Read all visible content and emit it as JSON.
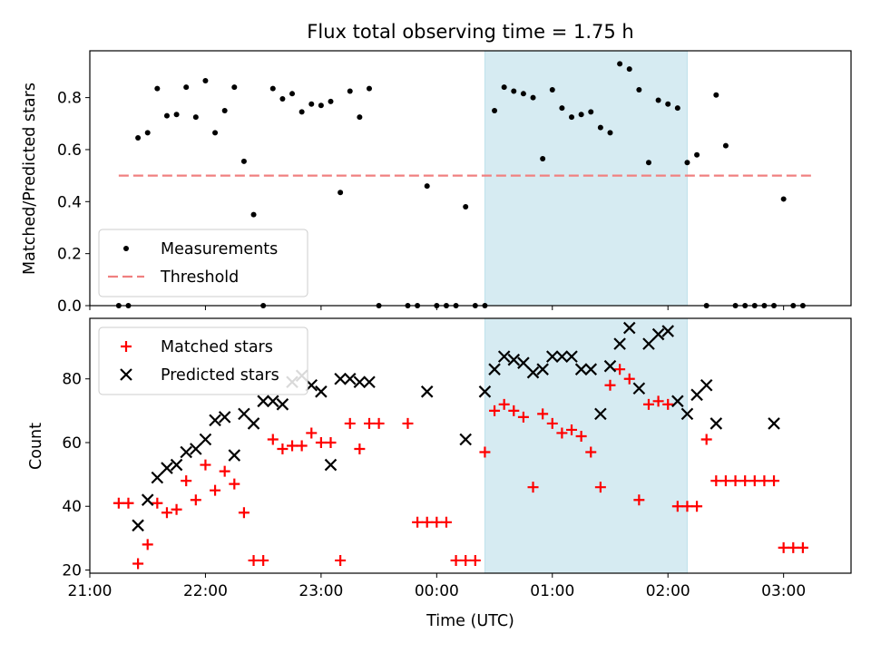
{
  "chart_data": [
    {
      "type": "scatter",
      "title": "Flux total observing time = 1.75 h",
      "ylabel": "Matched/Predicted stars",
      "xlabel": "",
      "ylim": [
        0,
        0.98
      ],
      "yticks": [
        "0.0",
        "0.2",
        "0.4",
        "0.6",
        "0.8"
      ],
      "xlim": [
        "21:00",
        "03:35"
      ],
      "legend_location": "lower-left",
      "highlight_span": {
        "start": "00:25",
        "end": "02:10",
        "color": "#add8e6"
      },
      "series": [
        {
          "name": "Measurements",
          "color": "#000000",
          "marker": "dot",
          "x": [
            "21:15",
            "21:20",
            "21:25",
            "21:30",
            "21:35",
            "21:40",
            "21:45",
            "21:50",
            "21:55",
            "22:00",
            "22:05",
            "22:10",
            "22:15",
            "22:20",
            "22:25",
            "22:30",
            "22:35",
            "22:40",
            "22:45",
            "22:50",
            "22:55",
            "23:00",
            "23:05",
            "23:10",
            "23:15",
            "23:20",
            "23:25",
            "23:30",
            "23:45",
            "23:50",
            "23:55",
            "00:00",
            "00:05",
            "00:10",
            "00:15",
            "00:20",
            "00:25",
            "00:30",
            "00:35",
            "00:40",
            "00:45",
            "00:50",
            "00:55",
            "01:00",
            "01:05",
            "01:10",
            "01:15",
            "01:20",
            "01:25",
            "01:30",
            "01:35",
            "01:40",
            "01:45",
            "01:50",
            "01:55",
            "02:00",
            "02:05",
            "02:10",
            "02:15",
            "02:20",
            "02:25",
            "02:30",
            "02:35",
            "02:40",
            "02:45",
            "02:50",
            "02:55",
            "03:00",
            "03:05",
            "03:10"
          ],
          "y": [
            0.0,
            0.0,
            0.645,
            0.665,
            0.835,
            0.73,
            0.735,
            0.84,
            0.725,
            0.865,
            0.665,
            0.75,
            0.84,
            0.555,
            0.35,
            0.0,
            0.835,
            0.795,
            0.815,
            0.745,
            0.775,
            0.77,
            0.785,
            0.435,
            0.825,
            0.725,
            0.835,
            0.0,
            0.0,
            0.0,
            0.46,
            0.0,
            0.0,
            0.0,
            0.38,
            0.0,
            0.0,
            0.75,
            0.84,
            0.825,
            0.815,
            0.8,
            0.565,
            0.83,
            0.76,
            0.725,
            0.735,
            0.745,
            0.685,
            0.665,
            0.93,
            0.91,
            0.83,
            0.55,
            0.79,
            0.775,
            0.76,
            0.55,
            0.58,
            0.0,
            0.81,
            0.615,
            0.0,
            0.0,
            0.0,
            0.0,
            0.0,
            0.41,
            0.0,
            0.0
          ]
        },
        {
          "name": "Threshold",
          "color": "#f08080",
          "style": "dashed",
          "x": [
            "21:15",
            "03:15"
          ],
          "y": [
            0.5,
            0.5
          ]
        }
      ]
    },
    {
      "type": "scatter",
      "title": "",
      "ylabel": "Count",
      "xlabel": "Time (UTC)",
      "ylim": [
        19,
        99
      ],
      "yticks": [
        "20",
        "40",
        "60",
        "80"
      ],
      "xlim": [
        "21:00",
        "03:35"
      ],
      "xticks": [
        "21:00",
        "22:00",
        "23:00",
        "00:00",
        "01:00",
        "02:00",
        "03:00"
      ],
      "legend_location": "upper-left",
      "highlight_span": {
        "start": "00:25",
        "end": "02:10",
        "color": "#add8e6"
      },
      "series": [
        {
          "name": "Matched stars",
          "color": "#ff0000",
          "marker": "plus",
          "x": [
            "21:15",
            "21:20",
            "21:25",
            "21:30",
            "21:35",
            "21:40",
            "21:45",
            "21:50",
            "21:55",
            "22:00",
            "22:05",
            "22:10",
            "22:15",
            "22:20",
            "22:25",
            "22:30",
            "22:35",
            "22:40",
            "22:45",
            "22:50",
            "22:55",
            "23:00",
            "23:05",
            "23:10",
            "23:15",
            "23:20",
            "23:25",
            "23:30",
            "23:45",
            "23:50",
            "23:55",
            "00:00",
            "00:05",
            "00:10",
            "00:15",
            "00:20",
            "00:25",
            "00:30",
            "00:35",
            "00:40",
            "00:45",
            "00:50",
            "00:55",
            "01:00",
            "01:05",
            "01:10",
            "01:15",
            "01:20",
            "01:25",
            "01:30",
            "01:35",
            "01:40",
            "01:45",
            "01:50",
            "01:55",
            "02:00",
            "02:05",
            "02:10",
            "02:15",
            "02:20",
            "02:25",
            "02:30",
            "02:35",
            "02:40",
            "02:45",
            "02:50",
            "02:55",
            "03:00",
            "03:05",
            "03:10"
          ],
          "y": [
            41,
            41,
            22,
            28,
            41,
            38,
            39,
            48,
            42,
            53,
            45,
            51,
            47,
            38,
            23,
            23,
            61,
            58,
            59,
            59,
            63,
            60,
            60,
            23,
            66,
            58,
            66,
            66,
            66,
            35,
            35,
            35,
            35,
            23,
            23,
            23,
            57,
            70,
            72,
            70,
            68,
            46,
            69,
            66,
            63,
            64,
            62,
            57,
            46,
            78,
            83,
            80,
            42,
            72,
            73,
            72,
            40,
            40,
            40,
            61,
            48,
            48,
            48,
            48,
            48,
            48,
            48,
            27,
            27,
            27
          ]
        },
        {
          "name": "Predicted stars",
          "color": "#000000",
          "marker": "x",
          "x": [
            "21:25",
            "21:30",
            "21:35",
            "21:40",
            "21:45",
            "21:50",
            "21:55",
            "22:00",
            "22:05",
            "22:10",
            "22:15",
            "22:20",
            "22:25",
            "22:30",
            "22:35",
            "22:40",
            "22:45",
            "22:50",
            "22:55",
            "23:00",
            "23:05",
            "23:10",
            "23:15",
            "23:20",
            "23:25",
            "23:55",
            "00:15",
            "00:25",
            "00:30",
            "00:35",
            "00:40",
            "00:45",
            "00:50",
            "00:55",
            "01:00",
            "01:05",
            "01:10",
            "01:15",
            "01:20",
            "01:25",
            "01:30",
            "01:35",
            "01:40",
            "01:45",
            "01:50",
            "01:55",
            "02:00",
            "02:05",
            "02:10",
            "02:15",
            "02:20",
            "02:25",
            "02:55"
          ],
          "y": [
            34,
            42,
            49,
            52,
            53,
            57,
            58,
            61,
            67,
            68,
            56,
            69,
            66,
            73,
            73,
            72,
            79,
            81,
            78,
            76,
            53,
            80,
            80,
            79,
            79,
            76,
            61,
            76,
            83,
            87,
            86,
            85,
            82,
            83,
            87,
            87,
            87,
            83,
            83,
            69,
            84,
            91,
            96,
            77,
            91,
            94,
            95,
            73,
            69,
            75,
            78,
            66,
            66
          ]
        }
      ]
    }
  ]
}
